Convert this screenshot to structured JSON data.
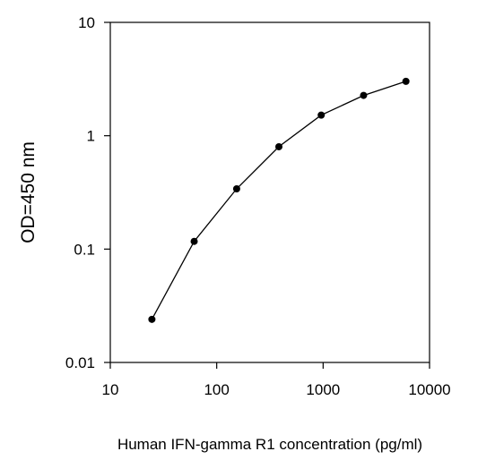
{
  "chart_data": {
    "type": "line",
    "title": "",
    "xlabel": "Human IFN-gamma R1 concentration (pg/ml)",
    "ylabel": "OD=450 nm",
    "x_scale": "log",
    "y_scale": "log",
    "xlim": [
      10,
      10000
    ],
    "ylim": [
      0.01,
      10
    ],
    "x_ticks": [
      10,
      100,
      1000,
      10000
    ],
    "x_tick_labels": [
      "10",
      "100",
      "1000",
      "10000"
    ],
    "y_ticks": [
      0.01,
      0.1,
      1,
      10
    ],
    "y_tick_labels": [
      "0.01",
      "0.1",
      "1",
      "10"
    ],
    "grid": false,
    "legend": "none",
    "series": [
      {
        "x": [
          24.6,
          61.4,
          154,
          384,
          960,
          2400,
          6000
        ],
        "y": [
          0.024,
          0.117,
          0.34,
          0.8,
          1.52,
          2.27,
          3.02
        ],
        "color": "#000000",
        "marker": "circle"
      }
    ]
  }
}
